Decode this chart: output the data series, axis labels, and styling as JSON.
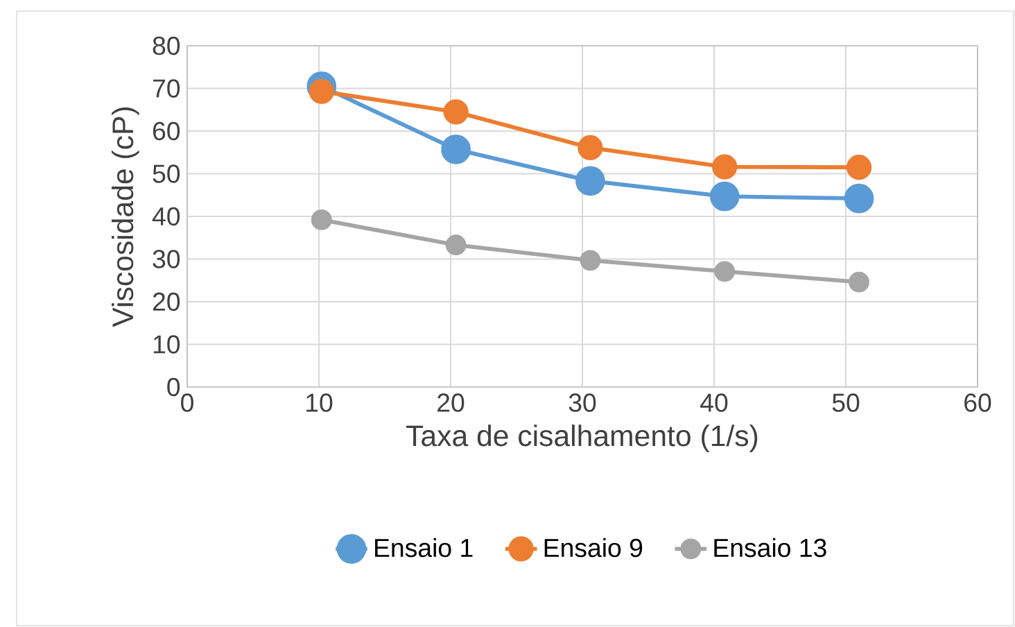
{
  "chart_data": {
    "type": "line",
    "xlabel": "Taxa de cisalhamento (1/s)",
    "ylabel": "Viscosidade (cP)",
    "x": [
      10.2,
      20.4,
      30.6,
      40.8,
      51
    ],
    "series": [
      {
        "name": "Ensaio 1",
        "color": "#5b9bd5",
        "values": [
          70.5,
          55.7,
          48.3,
          44.7,
          44.2
        ]
      },
      {
        "name": "Ensaio 9",
        "color": "#ed7d31",
        "values": [
          69.3,
          64.5,
          56.1,
          51.6,
          51.5
        ]
      },
      {
        "name": "Ensaio 13",
        "color": "#a5a5a5",
        "values": [
          39.2,
          33.3,
          29.7,
          27.1,
          24.6
        ]
      }
    ],
    "xlim": [
      0,
      60
    ],
    "xticks": [
      0,
      10,
      20,
      30,
      40,
      50,
      60
    ],
    "ylim": [
      0,
      80
    ],
    "yticks": [
      0,
      10,
      20,
      30,
      40,
      50,
      60,
      70,
      80
    ],
    "grid": true,
    "legend": "bottom",
    "marker": "circle",
    "line_style": "solid"
  }
}
